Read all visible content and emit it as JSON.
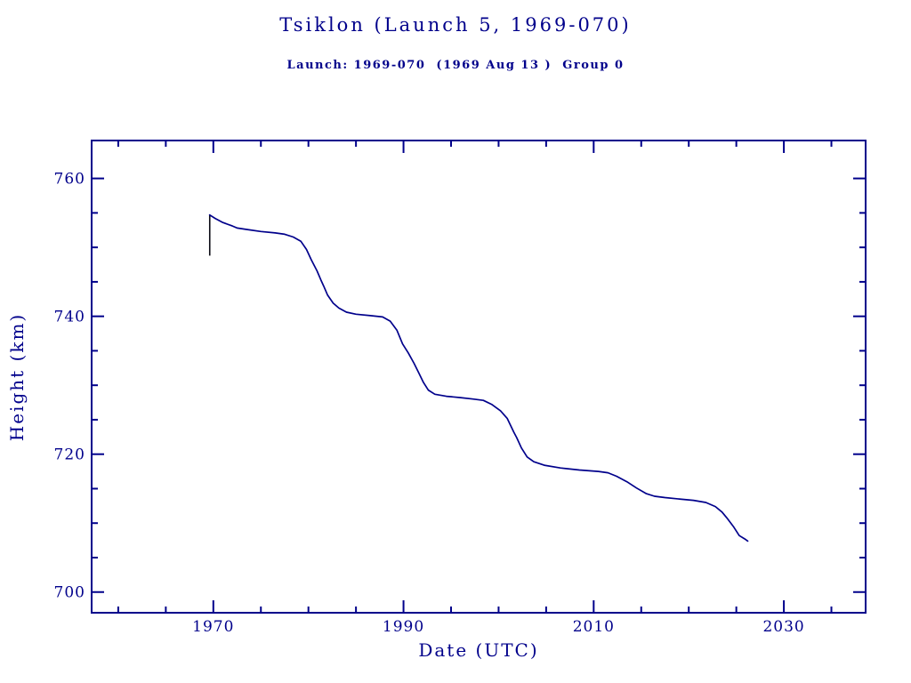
{
  "chart_data": {
    "type": "line",
    "title": "Tsiklon (Launch 5, 1969-070)",
    "subtitle": "Launch: 1969-070  (1969 Aug 13 )  Group 0",
    "xlabel": "Date (UTC)",
    "ylabel": "Height (km)",
    "xlim": [
      1957.2,
      2038.6
    ],
    "ylim": [
      697.0,
      765.5
    ],
    "grid": false,
    "legend": "none",
    "colors": {
      "line": "#00008b",
      "axis": "#00008b",
      "text": "#00008b",
      "drop_line": "#0a0a14",
      "background": "#ffffff"
    },
    "x_ticks_major": [
      {
        "value": 1970,
        "label": "1970"
      },
      {
        "value": 1990,
        "label": "1990"
      },
      {
        "value": 2010,
        "label": "2010"
      },
      {
        "value": 2030,
        "label": "2030"
      }
    ],
    "x_ticks_minor": [
      1960,
      1965,
      1975,
      1980,
      1985,
      1995,
      2000,
      2005,
      2015,
      2020,
      2025,
      2035
    ],
    "y_ticks_major": [
      {
        "value": 700,
        "label": "700"
      },
      {
        "value": 720,
        "label": "720"
      },
      {
        "value": 740,
        "label": "740"
      },
      {
        "value": 760,
        "label": "760"
      }
    ],
    "y_ticks_minor": [
      705,
      710,
      715,
      725,
      730,
      735,
      745,
      750,
      755
    ],
    "annotations": {
      "initial_drop_line": {
        "x": 1969.62,
        "y_from": 748.8,
        "y_to": 754.7
      }
    },
    "series": [
      {
        "name": "mean_height_km",
        "points": [
          [
            1969.62,
            754.7
          ],
          [
            1970.2,
            754.2
          ],
          [
            1971.0,
            753.6
          ],
          [
            1972.0,
            753.1
          ],
          [
            1972.5,
            752.8
          ],
          [
            1973.5,
            752.6
          ],
          [
            1975.0,
            752.3
          ],
          [
            1976.5,
            752.1
          ],
          [
            1977.5,
            751.9
          ],
          [
            1978.4,
            751.5
          ],
          [
            1979.2,
            750.9
          ],
          [
            1979.8,
            749.7
          ],
          [
            1980.3,
            748.2
          ],
          [
            1980.9,
            746.6
          ],
          [
            1981.3,
            745.3
          ],
          [
            1981.6,
            744.4
          ],
          [
            1982.0,
            743.1
          ],
          [
            1982.6,
            741.9
          ],
          [
            1983.2,
            741.2
          ],
          [
            1984.0,
            740.6
          ],
          [
            1985.0,
            740.3
          ],
          [
            1986.5,
            740.1
          ],
          [
            1987.8,
            739.9
          ],
          [
            1988.6,
            739.3
          ],
          [
            1989.3,
            738.0
          ],
          [
            1989.9,
            736.0
          ],
          [
            1990.5,
            734.7
          ],
          [
            1991.1,
            733.2
          ],
          [
            1991.6,
            731.8
          ],
          [
            1992.1,
            730.4
          ],
          [
            1992.6,
            729.3
          ],
          [
            1993.3,
            728.7
          ],
          [
            1994.5,
            728.4
          ],
          [
            1996.0,
            728.2
          ],
          [
            1997.3,
            728.0
          ],
          [
            1998.4,
            727.8
          ],
          [
            1999.3,
            727.2
          ],
          [
            2000.2,
            726.3
          ],
          [
            2000.9,
            725.2
          ],
          [
            2001.6,
            723.2
          ],
          [
            2001.9,
            722.4
          ],
          [
            2002.4,
            720.9
          ],
          [
            2003.0,
            719.6
          ],
          [
            2003.7,
            718.9
          ],
          [
            2004.8,
            718.4
          ],
          [
            2006.5,
            718.0
          ],
          [
            2008.5,
            717.7
          ],
          [
            2010.5,
            717.5
          ],
          [
            2011.5,
            717.3
          ],
          [
            2012.4,
            716.8
          ],
          [
            2013.5,
            716.0
          ],
          [
            2014.5,
            715.1
          ],
          [
            2015.5,
            714.3
          ],
          [
            2016.4,
            713.9
          ],
          [
            2017.5,
            713.7
          ],
          [
            2019.0,
            713.5
          ],
          [
            2020.5,
            713.3
          ],
          [
            2021.8,
            713.0
          ],
          [
            2022.8,
            712.4
          ],
          [
            2023.5,
            711.6
          ],
          [
            2024.1,
            710.6
          ],
          [
            2024.7,
            709.5
          ],
          [
            2025.3,
            708.2
          ],
          [
            2025.9,
            707.7
          ],
          [
            2026.2,
            707.4
          ]
        ]
      }
    ]
  }
}
